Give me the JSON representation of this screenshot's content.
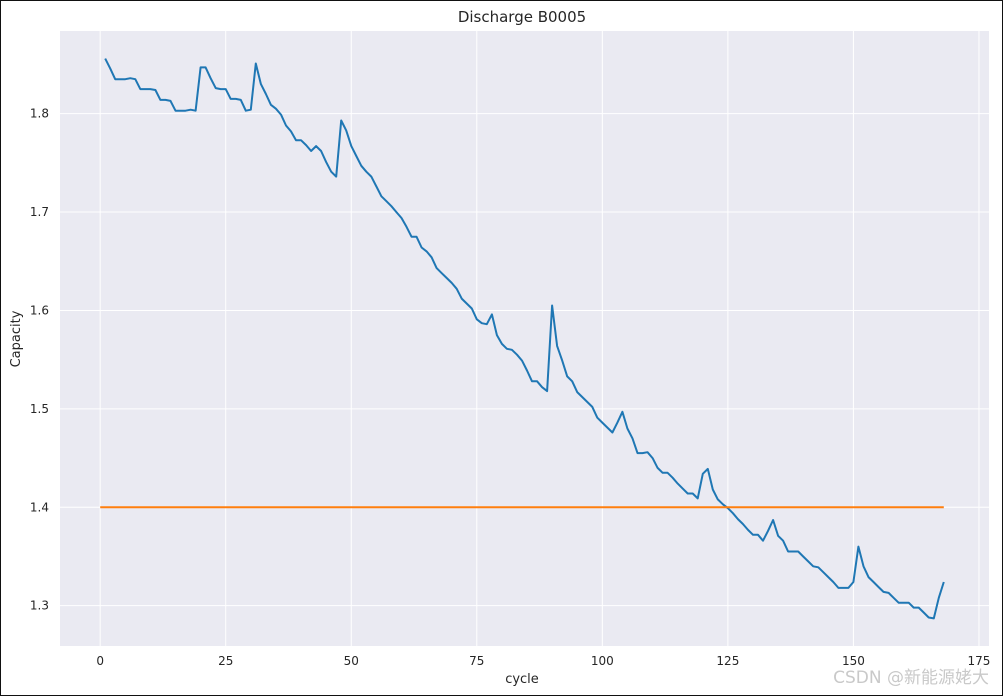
{
  "chart_data": {
    "type": "line",
    "title": "Discharge B0005",
    "xlabel": "cycle",
    "ylabel": "Capacity",
    "xlim": [
      -8,
      177
    ],
    "ylim": [
      1.259,
      1.884
    ],
    "xticks": [
      0,
      25,
      50,
      75,
      100,
      125,
      150,
      175
    ],
    "yticks": [
      1.3,
      1.4,
      1.5,
      1.6,
      1.7,
      1.8
    ],
    "grid": true,
    "style": {
      "background": "#eaeaf2",
      "grid_color": "#ffffff"
    },
    "series": [
      {
        "color": "#1f77b4",
        "x": [
          1,
          2,
          3,
          4,
          5,
          6,
          7,
          8,
          9,
          10,
          11,
          12,
          13,
          14,
          15,
          16,
          17,
          18,
          19,
          20,
          21,
          22,
          23,
          24,
          25,
          26,
          27,
          28,
          29,
          30,
          31,
          32,
          33,
          34,
          35,
          36,
          37,
          38,
          39,
          40,
          41,
          42,
          43,
          44,
          45,
          46,
          47,
          48,
          49,
          50,
          51,
          52,
          53,
          54,
          55,
          56,
          57,
          58,
          59,
          60,
          61,
          62,
          63,
          64,
          65,
          66,
          67,
          68,
          69,
          70,
          71,
          72,
          73,
          74,
          75,
          76,
          77,
          78,
          79,
          80,
          81,
          82,
          83,
          84,
          85,
          86,
          87,
          88,
          89,
          90,
          91,
          92,
          93,
          94,
          95,
          96,
          97,
          98,
          99,
          100,
          101,
          102,
          103,
          104,
          105,
          106,
          107,
          108,
          109,
          110,
          111,
          112,
          113,
          114,
          115,
          116,
          117,
          118,
          119,
          120,
          121,
          122,
          123,
          124,
          125,
          126,
          127,
          128,
          129,
          130,
          131,
          132,
          133,
          134,
          135,
          136,
          137,
          138,
          139,
          140,
          141,
          142,
          143,
          144,
          145,
          146,
          147,
          148,
          149,
          150,
          151,
          152,
          153,
          154,
          155,
          156,
          157,
          158,
          159,
          160,
          161,
          162,
          163,
          164,
          165,
          166,
          167,
          168
        ],
        "y": [
          1.856,
          1.846,
          1.835,
          1.835,
          1.835,
          1.836,
          1.835,
          1.825,
          1.825,
          1.825,
          1.824,
          1.814,
          1.814,
          1.813,
          1.803,
          1.803,
          1.803,
          1.804,
          1.803,
          1.847,
          1.847,
          1.836,
          1.826,
          1.825,
          1.825,
          1.815,
          1.815,
          1.814,
          1.803,
          1.804,
          1.851,
          1.83,
          1.82,
          1.809,
          1.805,
          1.799,
          1.788,
          1.782,
          1.773,
          1.773,
          1.768,
          1.762,
          1.767,
          1.762,
          1.751,
          1.741,
          1.736,
          1.793,
          1.783,
          1.767,
          1.757,
          1.747,
          1.741,
          1.736,
          1.726,
          1.716,
          1.711,
          1.706,
          1.7,
          1.694,
          1.685,
          1.675,
          1.675,
          1.664,
          1.66,
          1.654,
          1.643,
          1.638,
          1.633,
          1.628,
          1.622,
          1.612,
          1.607,
          1.602,
          1.591,
          1.587,
          1.586,
          1.596,
          1.575,
          1.566,
          1.561,
          1.56,
          1.555,
          1.549,
          1.539,
          1.528,
          1.528,
          1.522,
          1.518,
          1.605,
          1.564,
          1.549,
          1.533,
          1.528,
          1.517,
          1.512,
          1.507,
          1.502,
          1.491,
          1.486,
          1.481,
          1.476,
          1.486,
          1.497,
          1.48,
          1.47,
          1.455,
          1.455,
          1.456,
          1.45,
          1.44,
          1.435,
          1.435,
          1.43,
          1.424,
          1.419,
          1.414,
          1.414,
          1.409,
          1.434,
          1.439,
          1.418,
          1.408,
          1.403,
          1.399,
          1.394,
          1.388,
          1.383,
          1.377,
          1.372,
          1.372,
          1.366,
          1.376,
          1.387,
          1.371,
          1.366,
          1.355,
          1.355,
          1.355,
          1.35,
          1.345,
          1.34,
          1.339,
          1.334,
          1.329,
          1.324,
          1.318,
          1.318,
          1.318,
          1.324,
          1.36,
          1.34,
          1.329,
          1.324,
          1.319,
          1.314,
          1.313,
          1.308,
          1.303,
          1.303,
          1.303,
          1.298,
          1.298,
          1.293,
          1.288,
          1.287,
          1.308,
          1.324
        ]
      },
      {
        "color": "#ff7f0e",
        "x": [
          0,
          168
        ],
        "y": [
          1.4,
          1.4
        ]
      }
    ]
  },
  "watermark": "CSDN @新能源姥大"
}
